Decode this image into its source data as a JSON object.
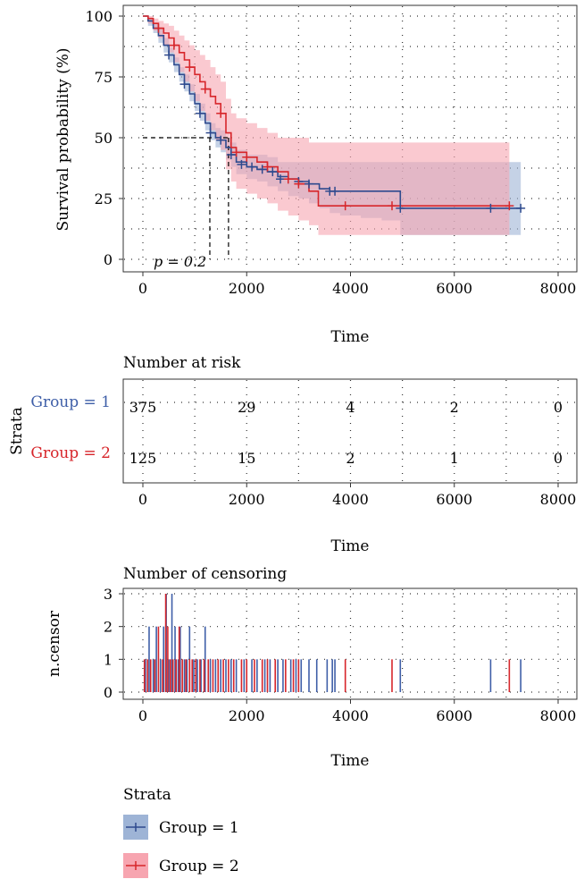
{
  "colors": {
    "group1": "#2e4a8e",
    "group2": "#d7262b",
    "group1_band": "#9eb4d6",
    "group2_band": "#f7a5b0",
    "grid": "#333333",
    "axis": "#333333"
  },
  "chart_data": [
    {
      "type": "line",
      "subtype": "kaplan-meier",
      "title": "",
      "xlabel": "Time",
      "ylabel": "Survival probability (%)",
      "xlim": [
        0,
        8000
      ],
      "ylim": [
        0,
        100
      ],
      "xticks": [
        "0",
        "2000",
        "4000",
        "6000",
        "8000"
      ],
      "yticks": [
        "0",
        "25",
        "50",
        "75",
        "100"
      ],
      "grid": "dotted",
      "annotation": {
        "text": "p = 0.2",
        "x": 200,
        "y": 0
      },
      "median_lines": {
        "y": 50,
        "x": [
          1290,
          1650
        ]
      },
      "series": [
        {
          "name": "Group = 1",
          "color": "#2e4a8e",
          "band_color": "#9eb4d6",
          "x": [
            0,
            100,
            200,
            300,
            400,
            500,
            600,
            700,
            800,
            900,
            1000,
            1100,
            1200,
            1300,
            1400,
            1500,
            1600,
            1700,
            1800,
            2000,
            2200,
            2400,
            2600,
            2800,
            3000,
            3200,
            3400,
            3600,
            3800,
            4200,
            4600,
            4960,
            5600,
            6300,
            7000,
            7280
          ],
          "y": [
            100,
            98,
            95,
            92,
            88,
            84,
            80,
            76,
            72,
            68,
            64,
            60,
            56,
            52,
            50,
            49,
            46,
            43,
            40,
            38,
            37,
            36,
            34,
            33,
            32,
            31,
            29,
            28,
            28,
            28,
            28,
            21,
            21,
            21,
            21,
            21
          ],
          "lower": [
            100,
            96,
            93,
            89,
            85,
            81,
            77,
            73,
            69,
            65,
            61,
            57,
            53,
            49,
            46,
            44,
            41,
            38,
            35,
            33,
            32,
            30,
            28,
            26,
            25,
            23,
            21,
            19,
            18,
            17,
            16,
            10,
            10,
            10,
            10,
            10
          ],
          "upper": [
            100,
            99,
            97,
            95,
            91,
            87,
            83,
            79,
            76,
            72,
            68,
            64,
            60,
            56,
            54,
            53,
            50,
            48,
            45,
            43,
            43,
            42,
            40,
            40,
            40,
            40,
            40,
            40,
            40,
            40,
            40,
            40,
            40,
            40,
            40,
            40
          ],
          "censor_x": [
            500,
            800,
            1100,
            1300,
            1500,
            1700,
            1900,
            2100,
            2300,
            2500,
            2650,
            2800,
            3000,
            3200,
            3600,
            3700,
            4960,
            6700,
            7280
          ],
          "censor_y": [
            84,
            72,
            60,
            52,
            49,
            43,
            39,
            38,
            37,
            36,
            33,
            33,
            32,
            31,
            28,
            28,
            21,
            21,
            21
          ]
        },
        {
          "name": "Group = 2",
          "color": "#d7262b",
          "band_color": "#f7a5b0",
          "x": [
            0,
            100,
            200,
            300,
            400,
            500,
            600,
            700,
            800,
            900,
            1000,
            1100,
            1200,
            1300,
            1400,
            1500,
            1600,
            1700,
            1800,
            2000,
            2200,
            2400,
            2600,
            2800,
            3000,
            3200,
            3380,
            3900,
            4800,
            5000,
            6000,
            6700,
            7060
          ],
          "y": [
            100,
            99,
            97,
            95,
            93,
            91,
            88,
            85,
            82,
            79,
            76,
            73,
            70,
            67,
            64,
            60,
            52,
            46,
            44,
            42,
            40,
            38,
            36,
            33,
            31,
            28,
            22,
            22,
            22,
            22,
            22,
            22,
            22
          ],
          "lower": [
            100,
            97,
            94,
            91,
            88,
            85,
            81,
            77,
            73,
            69,
            65,
            61,
            57,
            53,
            49,
            45,
            37,
            32,
            29,
            27,
            25,
            23,
            20,
            18,
            16,
            14,
            10,
            10,
            10,
            10,
            10,
            10,
            10
          ],
          "upper": [
            100,
            100,
            99,
            98,
            97,
            96,
            94,
            92,
            90,
            88,
            86,
            84,
            82,
            79,
            76,
            73,
            66,
            60,
            58,
            56,
            54,
            52,
            50,
            50,
            50,
            48,
            48,
            48,
            48,
            48,
            48,
            48,
            48
          ],
          "censor_x": [
            300,
            600,
            900,
            1200,
            1500,
            1800,
            2000,
            2400,
            2800,
            3000,
            3900,
            4800,
            7060
          ],
          "censor_y": [
            95,
            88,
            79,
            70,
            60,
            44,
            42,
            38,
            33,
            31,
            22,
            22,
            22
          ]
        }
      ]
    },
    {
      "type": "table",
      "title": "Number at risk",
      "xlabel": "Time",
      "ylabel": "Strata",
      "xlim": [
        0,
        8000
      ],
      "xticks": [
        "0",
        "2000",
        "4000",
        "6000",
        "8000"
      ],
      "rows": [
        {
          "label": "Group = 1",
          "color": "#3f5fa8",
          "values": [
            "375",
            "29",
            "4",
            "2",
            "0"
          ]
        },
        {
          "label": "Group = 2",
          "color": "#d7262b",
          "values": [
            "125",
            "15",
            "2",
            "1",
            "0"
          ]
        }
      ]
    },
    {
      "type": "bar",
      "subtype": "censoring",
      "title": "Number of censoring",
      "xlabel": "Time",
      "ylabel": "n.censor",
      "xlim": [
        0,
        8000
      ],
      "ylim": [
        0,
        3
      ],
      "xticks": [
        "0",
        "2000",
        "4000",
        "6000",
        "8000"
      ],
      "yticks": [
        "0",
        "1",
        "2",
        "3"
      ],
      "series": [
        {
          "name": "Group = 1",
          "color": "#3f5fa8",
          "x": [
            50,
            120,
            200,
            260,
            340,
            400,
            450,
            500,
            560,
            620,
            680,
            720,
            800,
            850,
            900,
            980,
            1050,
            1120,
            1200,
            1300,
            1400,
            1500,
            1600,
            1700,
            1800,
            1950,
            2100,
            2200,
            2350,
            2450,
            2600,
            2700,
            2850,
            2950,
            3050,
            3200,
            3350,
            3550,
            3650,
            3700,
            4960,
            6700,
            7280
          ],
          "y": [
            1,
            2,
            1,
            2,
            1,
            2,
            3,
            1,
            3,
            2,
            1,
            2,
            1,
            1,
            2,
            1,
            1,
            1,
            2,
            1,
            1,
            1,
            1,
            1,
            1,
            1,
            1,
            1,
            1,
            1,
            1,
            1,
            1,
            1,
            1,
            1,
            1,
            1,
            1,
            1,
            1,
            1,
            1
          ]
        },
        {
          "name": "Group = 2",
          "color": "#d7262b",
          "x": [
            30,
            90,
            150,
            230,
            300,
            380,
            440,
            480,
            530,
            580,
            640,
            700,
            760,
            830,
            900,
            950,
            1020,
            1100,
            1180,
            1260,
            1350,
            1450,
            1550,
            1650,
            1750,
            1900,
            2000,
            2150,
            2300,
            2400,
            2550,
            2750,
            2900,
            3000,
            3900,
            4800,
            7060
          ],
          "y": [
            1,
            1,
            1,
            1,
            2,
            1,
            3,
            2,
            1,
            1,
            1,
            2,
            1,
            1,
            1,
            1,
            1,
            1,
            1,
            1,
            1,
            1,
            1,
            1,
            1,
            1,
            1,
            1,
            1,
            1,
            1,
            1,
            1,
            1,
            1,
            1,
            1
          ]
        }
      ]
    }
  ],
  "legend": {
    "title": "Strata",
    "items": [
      {
        "label": "Group = 1",
        "color": "#2e4a8e",
        "band_color": "#9eb4d6"
      },
      {
        "label": "Group = 2",
        "color": "#d7262b",
        "band_color": "#f7a5b0"
      }
    ]
  }
}
